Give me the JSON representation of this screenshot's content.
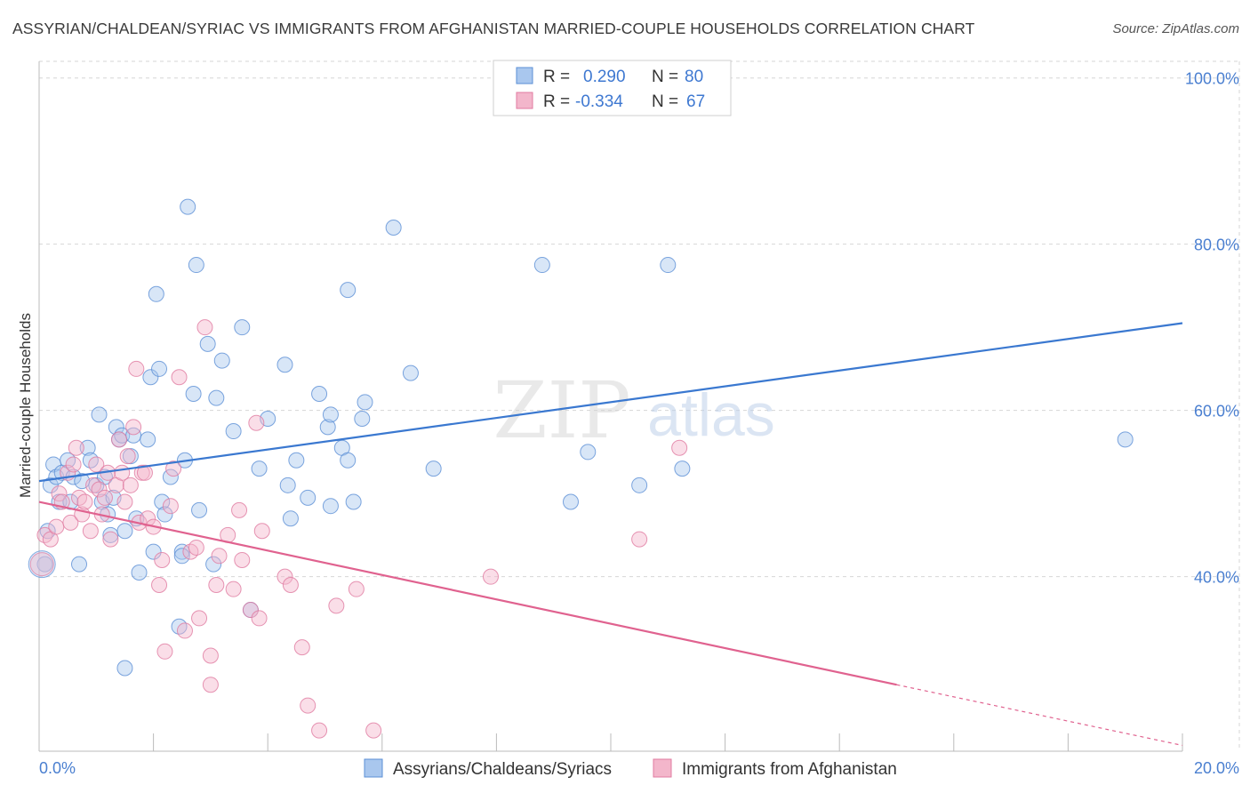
{
  "title": "ASSYRIAN/CHALDEAN/SYRIAC VS IMMIGRANTS FROM AFGHANISTAN MARRIED-COUPLE HOUSEHOLDS CORRELATION CHART",
  "source": "Source: ZipAtlas.com",
  "watermark": {
    "zip": "ZIP",
    "atlas": "atlas"
  },
  "legend_box": {
    "row1": {
      "r_label": "R =",
      "r_value": "0.290",
      "n_label": "N =",
      "n_value": "80"
    },
    "row2": {
      "r_label": "R =",
      "r_value": "-0.334",
      "n_label": "N =",
      "n_value": "67"
    }
  },
  "chart_data": {
    "type": "scatter",
    "xlabel": "",
    "ylabel": "Married-couple Households",
    "xlim": [
      0,
      20
    ],
    "ylim": [
      19,
      102
    ],
    "x_tick_labels": [
      {
        "value": 0,
        "label": "0.0%"
      },
      {
        "value": 20,
        "label": "20.0%"
      }
    ],
    "y_tick_labels": [
      {
        "value": 100,
        "label": "100.0%"
      },
      {
        "value": 80,
        "label": "80.0%"
      },
      {
        "value": 60,
        "label": "60.0%"
      },
      {
        "value": 40,
        "label": "40.0%"
      }
    ],
    "grid": true,
    "legend_position": "bottom",
    "series": [
      {
        "name": "Assyrians/Chaldeans/Syriacs",
        "color": "#a9c7ee",
        "edge": "#5b8fd6",
        "line_color": "#3a78d0",
        "trend": {
          "x": [
            0,
            20
          ],
          "y": [
            51.5,
            70.5
          ]
        },
        "points": [
          [
            0.2,
            51
          ],
          [
            0.25,
            53.5
          ],
          [
            0.3,
            52
          ],
          [
            0.35,
            49
          ],
          [
            0.4,
            52.5
          ],
          [
            0.5,
            54
          ],
          [
            0.55,
            49
          ],
          [
            0.6,
            52
          ],
          [
            0.7,
            41.5
          ],
          [
            0.75,
            51.5
          ],
          [
            0.85,
            55.5
          ],
          [
            0.9,
            54
          ],
          [
            1.0,
            51
          ],
          [
            1.05,
            59.5
          ],
          [
            1.1,
            49
          ],
          [
            1.15,
            52
          ],
          [
            1.2,
            47.5
          ],
          [
            1.25,
            45
          ],
          [
            1.3,
            49.5
          ],
          [
            1.35,
            58
          ],
          [
            1.4,
            56.5
          ],
          [
            1.45,
            57
          ],
          [
            1.5,
            45.5
          ],
          [
            1.6,
            54.5
          ],
          [
            1.65,
            57
          ],
          [
            1.7,
            47
          ],
          [
            1.75,
            40.5
          ],
          [
            1.9,
            56.5
          ],
          [
            1.95,
            64
          ],
          [
            2.0,
            43
          ],
          [
            2.05,
            74
          ],
          [
            2.1,
            65
          ],
          [
            2.15,
            49
          ],
          [
            2.2,
            47.5
          ],
          [
            2.3,
            52
          ],
          [
            2.45,
            34
          ],
          [
            2.5,
            43
          ],
          [
            2.55,
            54
          ],
          [
            2.6,
            84.5
          ],
          [
            2.7,
            62
          ],
          [
            2.75,
            77.5
          ],
          [
            2.8,
            48
          ],
          [
            2.95,
            68
          ],
          [
            3.05,
            41.5
          ],
          [
            3.1,
            61.5
          ],
          [
            3.2,
            66
          ],
          [
            3.4,
            57.5
          ],
          [
            3.55,
            70
          ],
          [
            3.7,
            36
          ],
          [
            3.85,
            53
          ],
          [
            4.0,
            59
          ],
          [
            4.3,
            65.5
          ],
          [
            4.35,
            51
          ],
          [
            4.4,
            47
          ],
          [
            4.5,
            54
          ],
          [
            4.7,
            49.5
          ],
          [
            4.9,
            62
          ],
          [
            5.05,
            58
          ],
          [
            5.1,
            59.5
          ],
          [
            5.1,
            48.5
          ],
          [
            5.3,
            55.5
          ],
          [
            5.4,
            54
          ],
          [
            5.4,
            74.5
          ],
          [
            5.5,
            49
          ],
          [
            5.65,
            59
          ],
          [
            5.7,
            61
          ],
          [
            6.2,
            82
          ],
          [
            6.5,
            64.5
          ],
          [
            6.9,
            53
          ],
          [
            8.8,
            77.5
          ],
          [
            9.3,
            49
          ],
          [
            9.6,
            55
          ],
          [
            10.5,
            51
          ],
          [
            11.0,
            77.5
          ],
          [
            11.25,
            53
          ],
          [
            19.0,
            56.5
          ],
          [
            0.15,
            45.5
          ],
          [
            0.1,
            41.5
          ],
          [
            1.5,
            29
          ],
          [
            2.5,
            42.5
          ]
        ]
      },
      {
        "name": "Immigrants from Afghanistan",
        "color": "#f3b6cb",
        "edge": "#e07ba0",
        "line_color": "#e0628f",
        "trend": {
          "x": [
            0,
            15
          ],
          "y": [
            49,
            27
          ]
        },
        "trend_dashed": {
          "x": [
            15,
            20
          ],
          "y": [
            27,
            19.7
          ]
        },
        "points": [
          [
            0.1,
            45
          ],
          [
            0.2,
            44.5
          ],
          [
            0.3,
            46
          ],
          [
            0.35,
            50
          ],
          [
            0.4,
            49
          ],
          [
            0.5,
            52.5
          ],
          [
            0.55,
            46.5
          ],
          [
            0.6,
            53.5
          ],
          [
            0.65,
            55.5
          ],
          [
            0.7,
            49.5
          ],
          [
            0.75,
            47.5
          ],
          [
            0.8,
            49
          ],
          [
            0.9,
            45.5
          ],
          [
            0.95,
            51
          ],
          [
            1.0,
            53.5
          ],
          [
            1.05,
            50.5
          ],
          [
            1.1,
            47.5
          ],
          [
            1.15,
            49.5
          ],
          [
            1.2,
            52.5
          ],
          [
            1.25,
            44.5
          ],
          [
            1.35,
            51
          ],
          [
            1.4,
            56.5
          ],
          [
            1.45,
            52.5
          ],
          [
            1.5,
            49
          ],
          [
            1.55,
            54.5
          ],
          [
            1.6,
            51
          ],
          [
            1.65,
            58
          ],
          [
            1.7,
            65
          ],
          [
            1.75,
            46.5
          ],
          [
            1.8,
            52.5
          ],
          [
            1.85,
            52.5
          ],
          [
            1.9,
            47
          ],
          [
            2.0,
            46
          ],
          [
            2.1,
            39
          ],
          [
            2.15,
            42
          ],
          [
            2.2,
            31
          ],
          [
            2.3,
            48.5
          ],
          [
            2.35,
            53
          ],
          [
            2.45,
            64
          ],
          [
            2.55,
            33.5
          ],
          [
            2.65,
            43
          ],
          [
            2.75,
            43.5
          ],
          [
            2.8,
            35
          ],
          [
            2.9,
            70
          ],
          [
            3.0,
            27
          ],
          [
            3.0,
            30.5
          ],
          [
            3.1,
            39
          ],
          [
            3.15,
            42.5
          ],
          [
            3.3,
            45
          ],
          [
            3.4,
            38.5
          ],
          [
            3.5,
            48
          ],
          [
            3.55,
            42
          ],
          [
            3.7,
            36
          ],
          [
            3.8,
            58.5
          ],
          [
            3.85,
            35
          ],
          [
            3.9,
            45.5
          ],
          [
            4.3,
            40
          ],
          [
            4.4,
            39
          ],
          [
            4.6,
            31.5
          ],
          [
            4.7,
            24.5
          ],
          [
            4.9,
            21.5
          ],
          [
            5.2,
            36.5
          ],
          [
            5.55,
            38.5
          ],
          [
            5.85,
            21.5
          ],
          [
            7.9,
            40
          ],
          [
            10.5,
            44.5
          ],
          [
            11.2,
            55.5
          ]
        ]
      }
    ]
  },
  "bottom_legend": {
    "item1": "Assyrians/Chaldeans/Syriacs",
    "item2": "Immigrants from Afghanistan"
  }
}
